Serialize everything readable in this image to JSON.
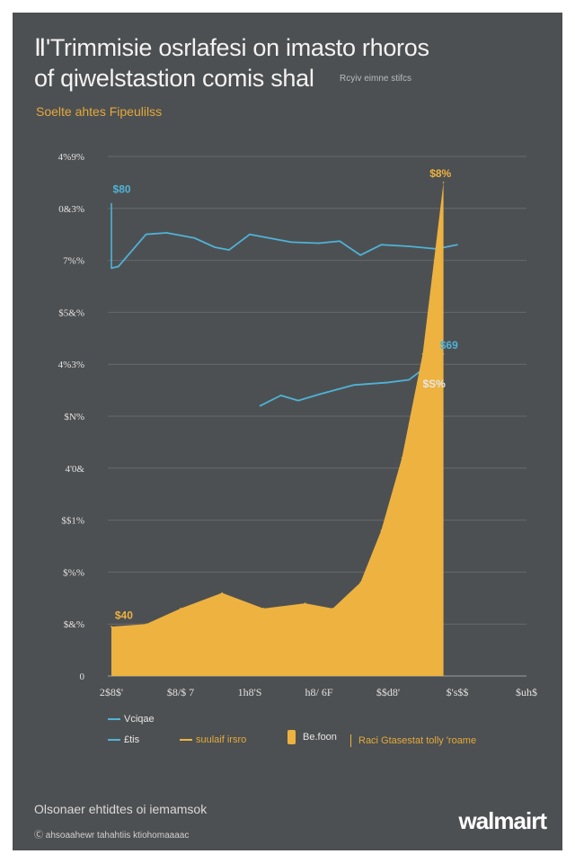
{
  "header": {
    "title_line1": "Ⅱ'Trimmisie osrlafesi on imasto rhoros",
    "title_line2": "of qiwelstastion comis shal",
    "title_note": "Rcyiv eimne stifcs",
    "subtitle": "Soelte ahtes Fipeulilss"
  },
  "chart_data": {
    "type": "line",
    "title": "Ⅱ'Trimmisie osrlafesi on imasto rhoros of qiwelstastion comis shal",
    "subtitle": "Soelte ahtes Fipeulilss",
    "y_tick_labels": [
      "0",
      "$&%",
      "$%%",
      "$$1%",
      "4'0&",
      "$N%",
      "4%3%",
      "$5&%",
      "7%%",
      "0&3%",
      "4%9%"
    ],
    "y_range": [
      0,
      10
    ],
    "x_tick_labels": [
      "2$8$'",
      "$8/$ 7",
      "1h8'S",
      "h8/ 6F",
      "$$d8'",
      "$'s$$",
      "$uh$"
    ],
    "x_range": [
      0,
      6
    ],
    "series": [
      {
        "name": "",
        "kind": "line",
        "color": "#4eb3d8",
        "points": [
          [
            0,
            7.85
          ],
          [
            0.1,
            7.88
          ],
          [
            0.5,
            8.5
          ],
          [
            0.8,
            8.53
          ],
          [
            1.2,
            8.43
          ],
          [
            1.5,
            8.25
          ],
          [
            1.7,
            8.2
          ],
          [
            2.0,
            8.5
          ],
          [
            2.6,
            8.35
          ],
          [
            3.0,
            8.33
          ],
          [
            3.3,
            8.37
          ],
          [
            3.6,
            8.1
          ],
          [
            3.9,
            8.3
          ],
          [
            4.3,
            8.27
          ],
          [
            4.7,
            8.22
          ],
          [
            5.0,
            8.3
          ]
        ]
      },
      {
        "name": "",
        "kind": "line",
        "color": "#4eb3d8",
        "points": [
          [
            2.15,
            5.2
          ],
          [
            2.45,
            5.4
          ],
          [
            2.7,
            5.3
          ],
          [
            3.0,
            5.42
          ],
          [
            3.5,
            5.6
          ],
          [
            4.0,
            5.65
          ],
          [
            4.3,
            5.7
          ],
          [
            4.8,
            6.2
          ]
        ]
      },
      {
        "name": "",
        "kind": "area",
        "color": "#edb240",
        "points": [
          [
            0,
            0.95
          ],
          [
            0.5,
            1.0
          ],
          [
            1.0,
            1.3
          ],
          [
            1.6,
            1.6
          ],
          [
            2.2,
            1.3
          ],
          [
            2.8,
            1.4
          ],
          [
            3.2,
            1.3
          ],
          [
            3.6,
            1.8
          ],
          [
            3.9,
            2.8
          ],
          [
            4.2,
            4.2
          ],
          [
            4.5,
            6.2
          ],
          [
            4.8,
            9.5
          ]
        ]
      }
    ],
    "annotations": [
      {
        "text": "$80",
        "x": 0.02,
        "y": 9.3,
        "color": "#4eb3d8"
      },
      {
        "text": "$40",
        "x": 0.05,
        "y": 1.1,
        "color": "#edb240"
      },
      {
        "text": "$69",
        "x": 4.75,
        "y": 6.3,
        "color": "#4eb3d8"
      },
      {
        "text": "$S%",
        "x": 4.5,
        "y": 5.55,
        "color": "#e6e6e6"
      },
      {
        "text": "$8%",
        "x": 4.6,
        "y": 9.6,
        "color": "#edb240"
      }
    ],
    "grid": true
  },
  "legend": {
    "items": [
      {
        "label": "Vciqae",
        "swatch": "line",
        "color": "#4eb3d8"
      },
      {
        "label": "£tis",
        "swatch": "line",
        "color": "#4eb3d8"
      },
      {
        "label": "suulaif irsro",
        "swatch": "line",
        "color": "#edb240"
      },
      {
        "label": "Be.foon",
        "swatch": "box",
        "color": "#edb240"
      },
      {
        "label": "Raci Gtasestat tolly 'roame",
        "swatch": "divider",
        "color": "#edb240"
      }
    ]
  },
  "footer": {
    "source": "Olsonaer ehtidtes oi iemamsok",
    "note": "Ⓒ ahsoaahewr tahahtiis ktiohomaaaac",
    "brand": "walmairt"
  },
  "colors": {
    "panel": "#4d5052",
    "line": "#4eb3d8",
    "area": "#edb240",
    "grid": "#666a6d"
  }
}
